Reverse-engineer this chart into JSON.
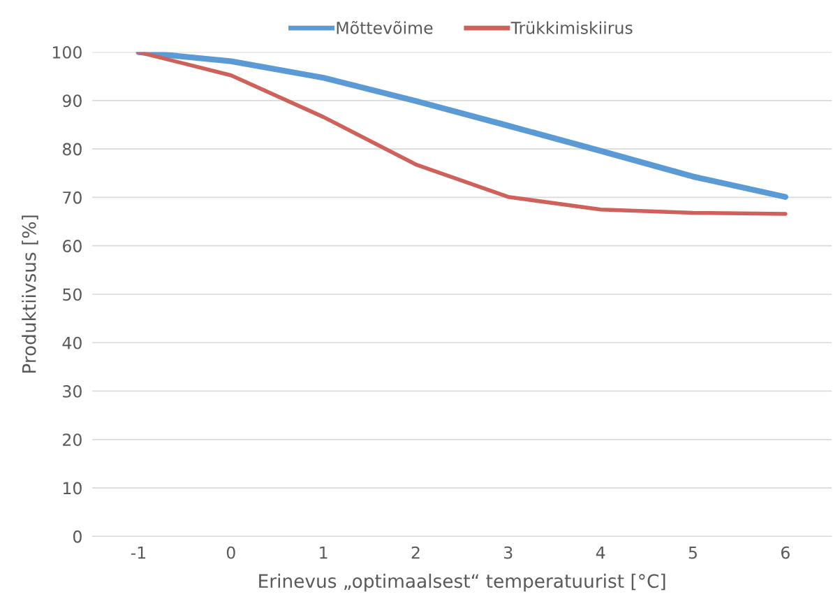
{
  "chart_data": {
    "type": "line",
    "xlabel": "Erinevus „optimaalsest“ temperatuurist [°C]",
    "ylabel": "Produktiivsus [%]",
    "categories": [
      "-1",
      "0",
      "1",
      "2",
      "3",
      "4",
      "5",
      "6"
    ],
    "series": [
      {
        "name": "Mõttevõime",
        "color": "#5b9bd5",
        "values": [
          100,
          98.1,
          94.7,
          89.9,
          84.8,
          79.6,
          74.3,
          70.1
        ]
      },
      {
        "name": "Trükkimiskiirus",
        "color": "#d0605a",
        "values": [
          100,
          95.2,
          86.6,
          76.8,
          70.1,
          67.5,
          66.8,
          66.6
        ]
      }
    ],
    "ylim": [
      0,
      100
    ],
    "yticks": [
      0,
      10,
      20,
      30,
      40,
      50,
      60,
      70,
      80,
      90,
      100
    ],
    "grid": "y",
    "legend": "top",
    "marker": "none",
    "line_style": "solid"
  }
}
